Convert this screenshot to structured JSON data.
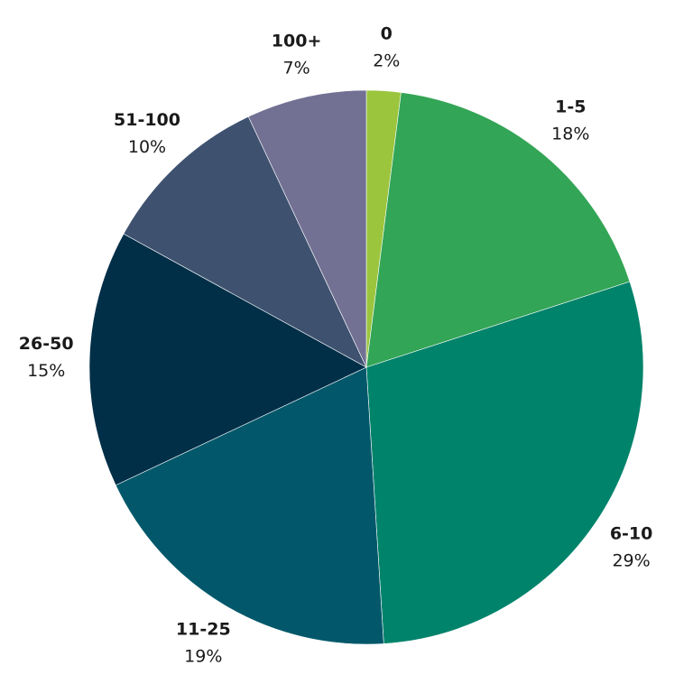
{
  "chart_data": {
    "type": "pie",
    "title": "",
    "start_angle_deg": 0,
    "direction": "clockwise",
    "slices": [
      {
        "label": "0",
        "value": 2,
        "display": "2%",
        "color": "#9bc53d"
      },
      {
        "label": "1-5",
        "value": 18,
        "display": "18%",
        "color": "#33a556"
      },
      {
        "label": "6-10",
        "value": 29,
        "display": "29%",
        "color": "#00836b"
      },
      {
        "label": "11-25",
        "value": 19,
        "display": "19%",
        "color": "#02586a"
      },
      {
        "label": "26-50",
        "value": 15,
        "display": "15%",
        "color": "#012f48"
      },
      {
        "label": "51-100",
        "value": 10,
        "display": "10%",
        "color": "#3e5270"
      },
      {
        "label": "100+",
        "value": 7,
        "display": "7%",
        "color": "#727093"
      }
    ],
    "legend": "none",
    "data_labels": "outside"
  }
}
